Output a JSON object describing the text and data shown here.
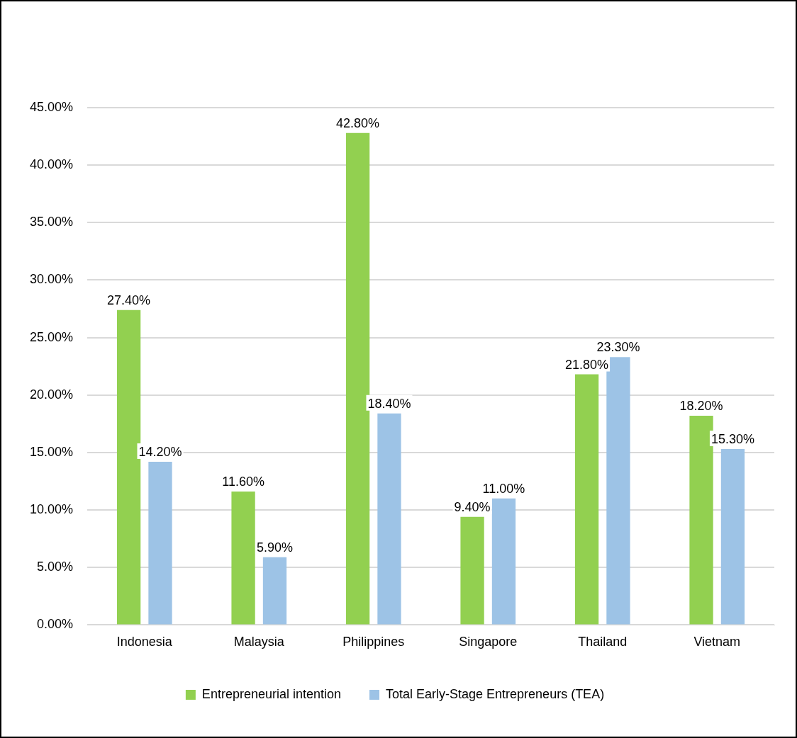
{
  "chart_data": {
    "type": "bar",
    "categories": [
      "Indonesia",
      "Malaysia",
      "Philippines",
      "Singapore",
      "Thailand",
      "Vietnam"
    ],
    "series": [
      {
        "name": "Entrepreneurial intention",
        "color": "#92d050",
        "values": [
          27.4,
          11.6,
          42.8,
          9.4,
          21.8,
          18.2
        ],
        "value_labels": [
          "27.40%",
          "11.60%",
          "42.80%",
          "9.40%",
          "21.80%",
          "18.20%"
        ]
      },
      {
        "name": "Total Early-Stage Entrepreneurs (TEA)",
        "color": "#9dc3e6",
        "values": [
          14.2,
          5.9,
          18.4,
          11.0,
          23.3,
          15.3
        ],
        "value_labels": [
          "14.20%",
          "5.90%",
          "18.40%",
          "11.00%",
          "23.30%",
          "15.30%"
        ]
      }
    ],
    "ylim": [
      0,
      45
    ],
    "yticks": [
      {
        "value": 0,
        "label": "0.00%"
      },
      {
        "value": 5,
        "label": "5.00%"
      },
      {
        "value": 10,
        "label": "10.00%"
      },
      {
        "value": 15,
        "label": "15.00%"
      },
      {
        "value": 20,
        "label": "20.00%"
      },
      {
        "value": 25,
        "label": "25.00%"
      },
      {
        "value": 30,
        "label": "30.00%"
      },
      {
        "value": 35,
        "label": "35.00%"
      },
      {
        "value": 40,
        "label": "40.00%"
      },
      {
        "value": 45,
        "label": "45.00%"
      }
    ],
    "grid": "y",
    "legend": "bottom"
  }
}
